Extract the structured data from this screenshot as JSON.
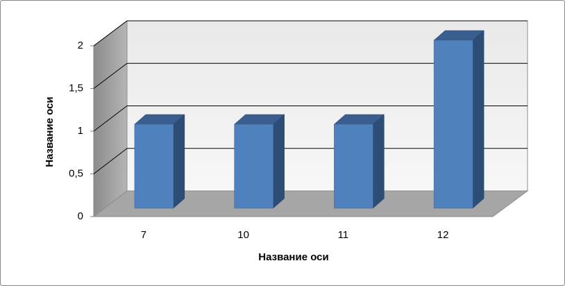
{
  "chart_data": {
    "type": "bar3d",
    "categories": [
      "7",
      "10",
      "11",
      "12"
    ],
    "values": [
      1,
      1,
      1,
      2
    ],
    "color": "#4f81bd",
    "x_label": "Название оси",
    "y_label": "Название оси",
    "ylim": [
      0,
      2
    ],
    "yticks": [
      0,
      {
        "value": 0.5,
        "label": "0,5"
      },
      1,
      {
        "value": 1.5,
        "label": "1,5"
      },
      2
    ],
    "grid": true
  }
}
